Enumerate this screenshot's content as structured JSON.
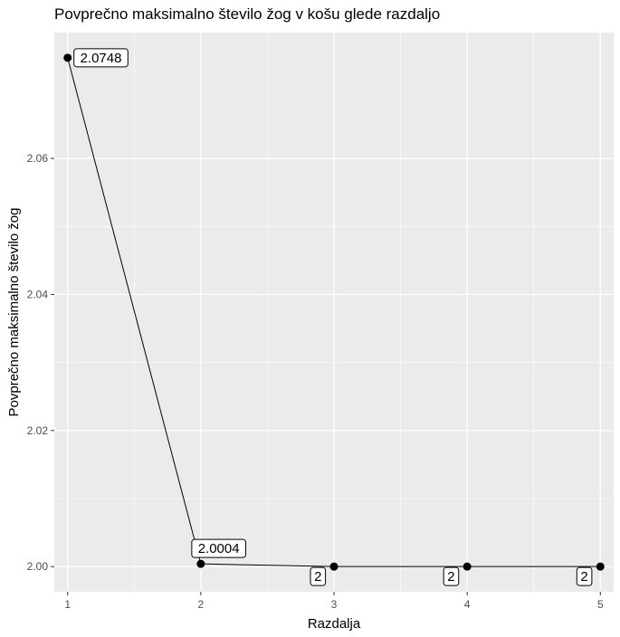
{
  "chart_data": {
    "type": "line",
    "title": "Povprečno maksimalno število žog v košu glede razdaljo",
    "xlabel": "Razdalja",
    "ylabel": "Povprečno maksimalno število žog",
    "x": [
      1,
      2,
      3,
      4,
      5
    ],
    "y": [
      2.0748,
      2.0004,
      2,
      2,
      2
    ],
    "labels": [
      "2.0748",
      "2.0004",
      "2",
      "2",
      "2"
    ],
    "xticks": [
      "1",
      "2",
      "3",
      "4",
      "5"
    ],
    "yticks": [
      "2.00",
      "2.02",
      "2.04",
      "2.06"
    ],
    "xlim": [
      0.9,
      5.1
    ],
    "ylim": [
      1.9963,
      2.0785
    ],
    "grid": true,
    "colors": {
      "panel": "#ebebeb",
      "grid": "#ffffff",
      "line": "#000000",
      "point": "#000000"
    }
  }
}
